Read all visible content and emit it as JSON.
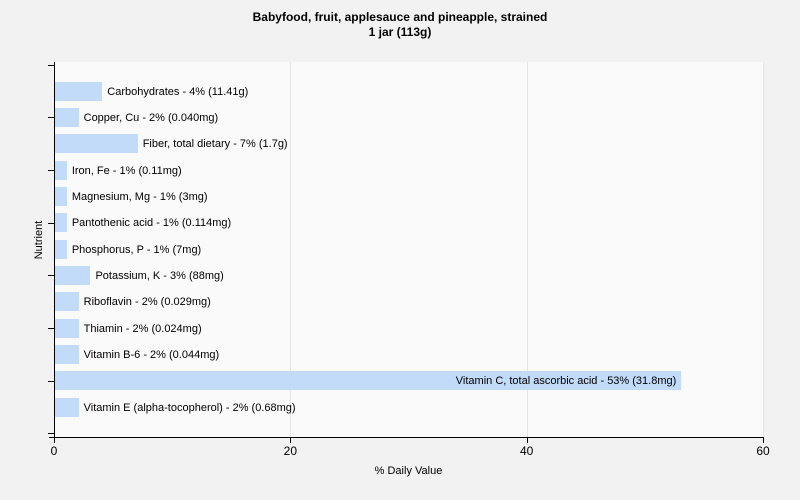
{
  "title": {
    "line1": "Babyfood, fruit, applesauce and pineapple, strained",
    "line2": "1 jar (113g)"
  },
  "x_axis": {
    "title": "% Daily Value",
    "tick_labels": [
      "0",
      "20",
      "40",
      "60"
    ],
    "tick_values": [
      0,
      20,
      40,
      60
    ],
    "max": 60
  },
  "y_axis": {
    "title": "Nutrient"
  },
  "colors": {
    "bar_fill": "#c2dbf9",
    "page_background": "#f2f2f2",
    "plot_background": "#fafafa",
    "gridline": "#e4e4e4",
    "axis_line": "#000000",
    "text": "#000000"
  },
  "chart_data": {
    "type": "bar",
    "orientation": "horizontal",
    "title": "Babyfood, fruit, applesauce and pineapple, strained — 1 jar (113g)",
    "xlabel": "% Daily Value",
    "ylabel": "Nutrient",
    "xlim": [
      0,
      60
    ],
    "x_ticks": [
      0,
      20,
      40,
      60
    ],
    "grid": "vertical-light",
    "legend": "none",
    "bars": [
      {
        "nutrient": "Carbohydrates",
        "percent_daily_value": 4,
        "amount": "11.41g",
        "label": "Carbohydrates - 4% (11.41g)",
        "label_inside": false
      },
      {
        "nutrient": "Copper, Cu",
        "percent_daily_value": 2,
        "amount": "0.040mg",
        "label": "Copper, Cu - 2% (0.040mg)",
        "label_inside": false
      },
      {
        "nutrient": "Fiber, total dietary",
        "percent_daily_value": 7,
        "amount": "1.7g",
        "label": "Fiber, total dietary - 7% (1.7g)",
        "label_inside": false
      },
      {
        "nutrient": "Iron, Fe",
        "percent_daily_value": 1,
        "amount": "0.11mg",
        "label": "Iron, Fe - 1% (0.11mg)",
        "label_inside": false
      },
      {
        "nutrient": "Magnesium, Mg",
        "percent_daily_value": 1,
        "amount": "3mg",
        "label": "Magnesium, Mg - 1% (3mg)",
        "label_inside": false
      },
      {
        "nutrient": "Pantothenic acid",
        "percent_daily_value": 1,
        "amount": "0.114mg",
        "label": "Pantothenic acid - 1% (0.114mg)",
        "label_inside": false
      },
      {
        "nutrient": "Phosphorus, P",
        "percent_daily_value": 1,
        "amount": "7mg",
        "label": "Phosphorus, P - 1% (7mg)",
        "label_inside": false
      },
      {
        "nutrient": "Potassium, K",
        "percent_daily_value": 3,
        "amount": "88mg",
        "label": "Potassium, K - 3% (88mg)",
        "label_inside": false
      },
      {
        "nutrient": "Riboflavin",
        "percent_daily_value": 2,
        "amount": "0.029mg",
        "label": "Riboflavin - 2% (0.029mg)",
        "label_inside": false
      },
      {
        "nutrient": "Thiamin",
        "percent_daily_value": 2,
        "amount": "0.024mg",
        "label": "Thiamin - 2% (0.024mg)",
        "label_inside": false
      },
      {
        "nutrient": "Vitamin B-6",
        "percent_daily_value": 2,
        "amount": "0.044mg",
        "label": "Vitamin B-6 - 2% (0.044mg)",
        "label_inside": false
      },
      {
        "nutrient": "Vitamin C, total ascorbic acid",
        "percent_daily_value": 53,
        "amount": "31.8mg",
        "label": "Vitamin C, total ascorbic acid - 53% (31.8mg)",
        "label_inside": true
      },
      {
        "nutrient": "Vitamin E (alpha-tocopherol)",
        "percent_daily_value": 2,
        "amount": "0.68mg",
        "label": "Vitamin E (alpha-tocopherol) - 2% (0.68mg)",
        "label_inside": false
      }
    ]
  }
}
